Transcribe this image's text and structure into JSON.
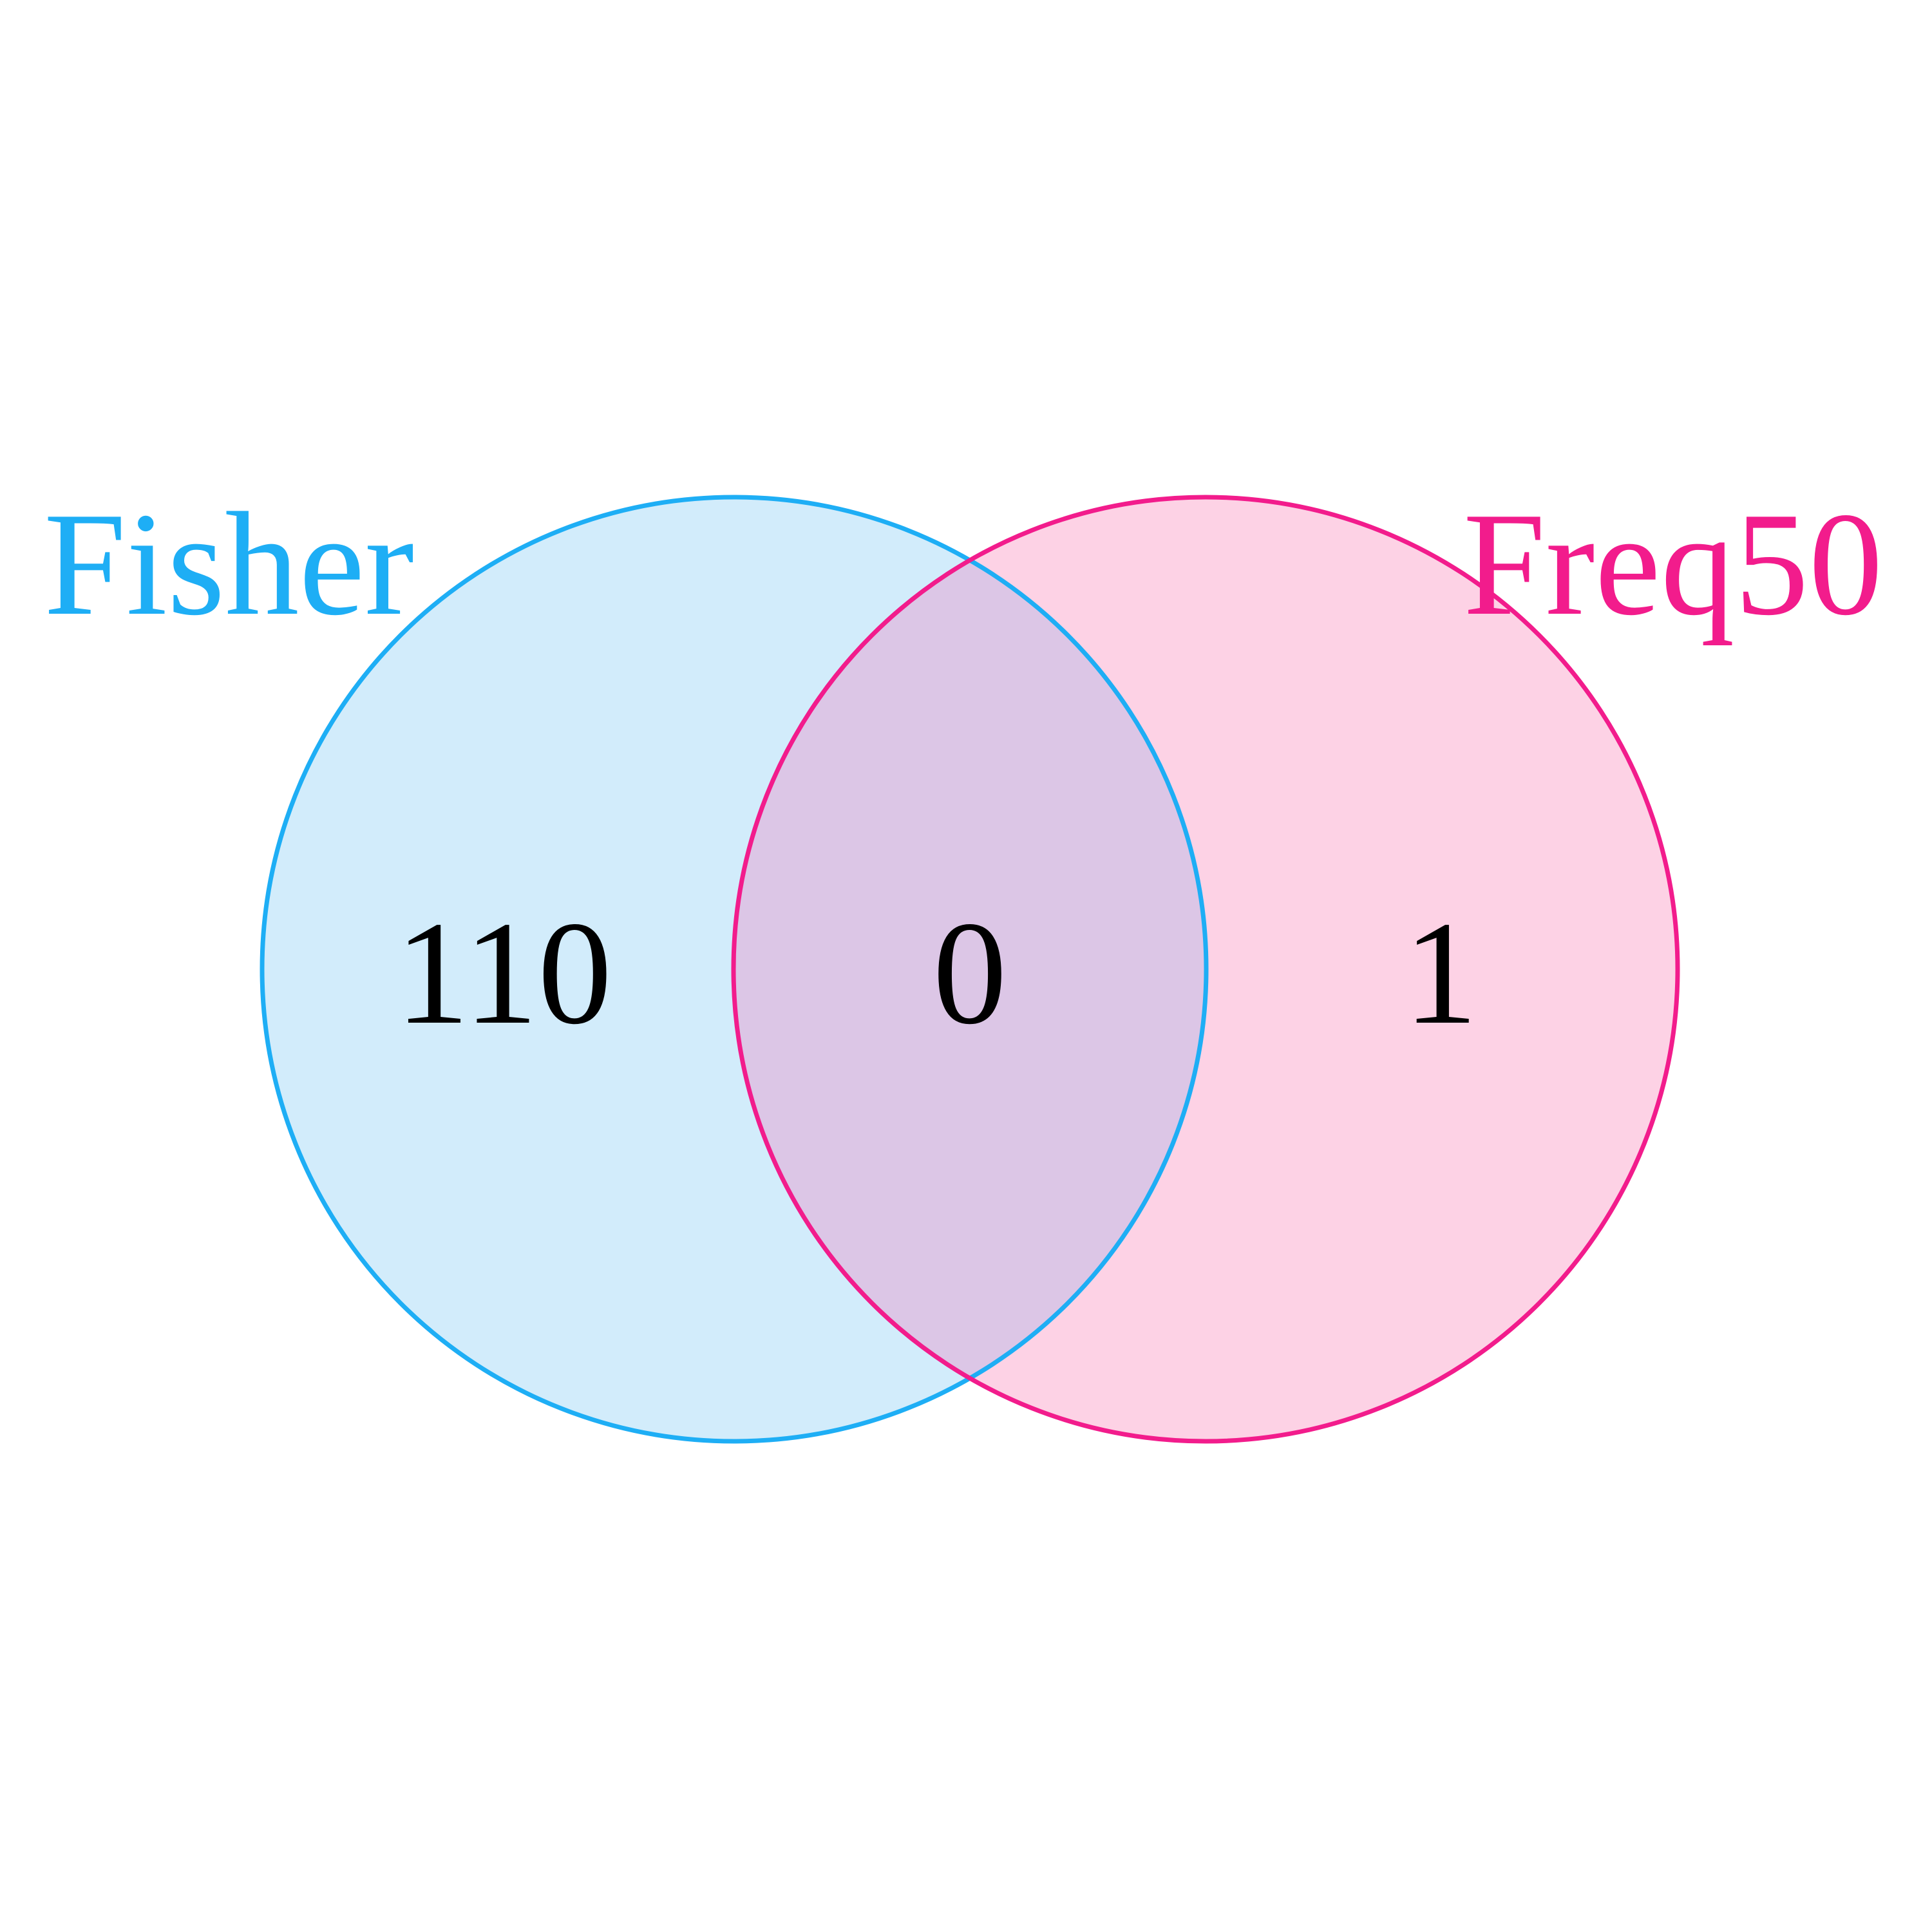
{
  "diagram": {
    "type": "venn",
    "sets": [
      {
        "label": "Fisher",
        "color": "#1EAEF5",
        "fill": "#D2ECFB"
      },
      {
        "label": "Freq50",
        "color": "#F21C8C",
        "fill": "#FDD2E5"
      }
    ],
    "overlap_fill": "#DCC6E6",
    "regions": {
      "fisher_only": "110",
      "both": "0",
      "freq50_only": "1"
    }
  }
}
